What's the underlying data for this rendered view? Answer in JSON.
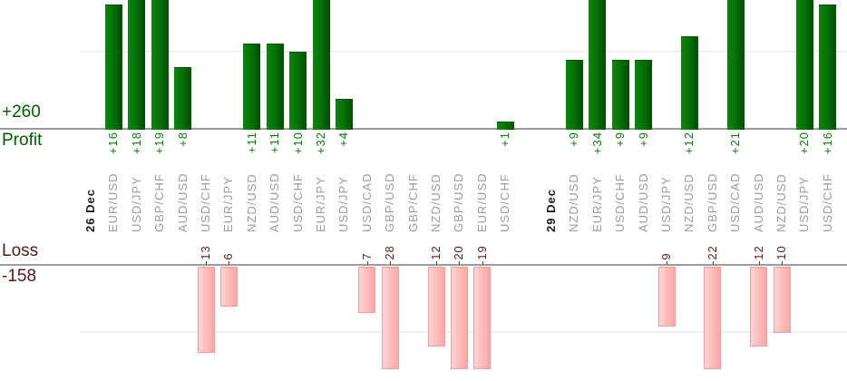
{
  "chart_data": {
    "type": "bar",
    "title": "",
    "axis": {
      "profit_total": "+260",
      "profit_label": "Profit",
      "loss_label": "Loss",
      "loss_total": "-158",
      "gridline_levels": {
        "profit": 10,
        "loss": -10
      }
    },
    "colors": {
      "profit_bar": "#077307",
      "profit_text": "#0b7a0b",
      "profit_heading": "#005c00",
      "loss_bar": "#ffb6b6",
      "loss_bar_border": "#f09e9e",
      "loss_text": "#5c2121",
      "loss_heading": "#531a1a",
      "pair_label": "#9c9c9c",
      "date_label": "#1c1c1c",
      "axis_line": "#9c9c9c",
      "gridline": "#eef1f2"
    },
    "entries": [
      {
        "kind": "date",
        "label": "26 Dec"
      },
      {
        "kind": "pair",
        "pair": "EUR/USD",
        "value": 16,
        "label": "+16"
      },
      {
        "kind": "pair",
        "pair": "USD/JPY",
        "value": 18,
        "label": "+18"
      },
      {
        "kind": "pair",
        "pair": "GBP/CHF",
        "value": 19,
        "label": "+19"
      },
      {
        "kind": "pair",
        "pair": "AUD/USD",
        "value": 8,
        "label": "+8"
      },
      {
        "kind": "pair",
        "pair": "USD/CHF",
        "value": -13,
        "label": "-13"
      },
      {
        "kind": "pair",
        "pair": "EUR/JPY",
        "value": -6,
        "label": "-6"
      },
      {
        "kind": "pair",
        "pair": "NZD/USD",
        "value": 11,
        "label": "+11"
      },
      {
        "kind": "pair",
        "pair": "AUD/USD",
        "value": 11,
        "label": "+11"
      },
      {
        "kind": "pair",
        "pair": "USD/CHF",
        "value": 10,
        "label": "+10"
      },
      {
        "kind": "pair",
        "pair": "EUR/JPY",
        "value": 32,
        "label": "+32"
      },
      {
        "kind": "pair",
        "pair": "USD/JPY",
        "value": 4,
        "label": "+4"
      },
      {
        "kind": "pair",
        "pair": "USD/CAD",
        "value": -7,
        "label": "-7"
      },
      {
        "kind": "pair",
        "pair": "GBP/USD",
        "value": -28,
        "label": "-28"
      },
      {
        "kind": "pair",
        "pair": "GBP/CHF",
        "value": 0,
        "label": ""
      },
      {
        "kind": "pair",
        "pair": "NZD/USD",
        "value": -12,
        "label": "-12"
      },
      {
        "kind": "pair",
        "pair": "GBP/USD",
        "value": -20,
        "label": "-20"
      },
      {
        "kind": "pair",
        "pair": "EUR/USD",
        "value": -19,
        "label": "-19"
      },
      {
        "kind": "pair",
        "pair": "USD/CHF",
        "value": 1,
        "label": "+1"
      },
      {
        "kind": "gap"
      },
      {
        "kind": "date",
        "label": "29 Dec"
      },
      {
        "kind": "pair",
        "pair": "NZD/USD",
        "value": 9,
        "label": "+9"
      },
      {
        "kind": "pair",
        "pair": "EUR/JPY",
        "value": 34,
        "label": "+34"
      },
      {
        "kind": "pair",
        "pair": "USD/CHF",
        "value": 9,
        "label": "+9"
      },
      {
        "kind": "pair",
        "pair": "AUD/USD",
        "value": 9,
        "label": "+9"
      },
      {
        "kind": "pair",
        "pair": "USD/JPY",
        "value": -9,
        "label": "-9"
      },
      {
        "kind": "pair",
        "pair": "NZD/USD",
        "value": 12,
        "label": "+12"
      },
      {
        "kind": "pair",
        "pair": "GBP/USD",
        "value": -22,
        "label": "-22"
      },
      {
        "kind": "pair",
        "pair": "USD/CAD",
        "value": 21,
        "label": "+21"
      },
      {
        "kind": "pair",
        "pair": "AUD/USD",
        "value": -12,
        "label": "-12"
      },
      {
        "kind": "pair",
        "pair": "NZD/USD",
        "value": -10,
        "label": "-10"
      },
      {
        "kind": "pair",
        "pair": "USD/JPY",
        "value": 20,
        "label": "+20"
      },
      {
        "kind": "pair",
        "pair": "USD/CHF",
        "value": 16,
        "label": "+16"
      }
    ]
  }
}
